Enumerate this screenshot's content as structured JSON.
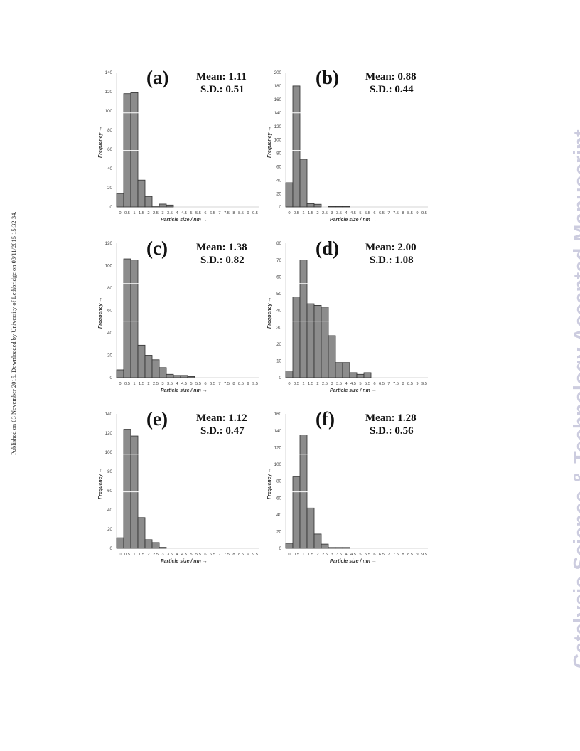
{
  "side_note": "Published on 03 November 2015. Downloaded by University of Lethbridge on 03/11/2015 15:32:34.",
  "watermark": "Catalysis Science & Technology Accepted Manuscript",
  "colors": {
    "bar_fill": "#8c8c8c",
    "bar_edge": "#2e2e2e",
    "axis": "#d6d6d6",
    "tick_text": "#444444"
  },
  "chart_data": [
    {
      "type": "bar",
      "panel_label": "(a)",
      "mean_text": "Mean: 1.11",
      "sd_text": "S.D.: 0.51",
      "ylabel": "Frequency →",
      "xlabel": "Particle size / nm →",
      "y_ticks": [
        "0",
        "20",
        "40",
        "60",
        "80",
        "100",
        "120",
        "140"
      ],
      "ylim": [
        0,
        140
      ],
      "categories": [
        "0",
        "0.5",
        "1",
        "1.5",
        "2",
        "2.5",
        "3",
        "3.5",
        "4",
        "4.5",
        "5",
        "5.5",
        "6",
        "6.5",
        "7",
        "7.5",
        "8",
        "8.5",
        "9",
        "9.5"
      ],
      "values": [
        14,
        118,
        119,
        28,
        11,
        1,
        3,
        2,
        0,
        0,
        0,
        0,
        0,
        0,
        0,
        0,
        0,
        0,
        0,
        0
      ]
    },
    {
      "type": "bar",
      "panel_label": "(b)",
      "mean_text": "Mean: 0.88",
      "sd_text": "S.D.: 0.44",
      "ylabel": "Frequency →",
      "xlabel": "Particle size / nm →",
      "y_ticks": [
        "0",
        "20",
        "40",
        "60",
        "80",
        "100",
        "120",
        "140",
        "160",
        "180",
        "200"
      ],
      "ylim": [
        0,
        200
      ],
      "categories": [
        "0",
        "0.5",
        "1",
        "1.5",
        "2",
        "2.5",
        "3",
        "3.5",
        "4",
        "4.5",
        "5",
        "5.5",
        "6",
        "6.5",
        "7",
        "7.5",
        "8",
        "8.5",
        "9",
        "9.5"
      ],
      "values": [
        36,
        180,
        71,
        5,
        4,
        0,
        1,
        1,
        1,
        0,
        0,
        0,
        0,
        0,
        0,
        0,
        0,
        0,
        0,
        0
      ]
    },
    {
      "type": "bar",
      "panel_label": "(c)",
      "mean_text": "Mean: 1.38",
      "sd_text": "S.D.: 0.82",
      "ylabel": "Frequency →",
      "xlabel": "Particle size / nm →",
      "y_ticks": [
        "0",
        "20",
        "40",
        "60",
        "80",
        "100",
        "120"
      ],
      "ylim": [
        0,
        120
      ],
      "categories": [
        "0",
        "0.5",
        "1",
        "1.5",
        "2",
        "2.5",
        "3",
        "3.5",
        "4",
        "4.5",
        "5",
        "5.5",
        "6",
        "6.5",
        "7",
        "7.5",
        "8",
        "8.5",
        "9",
        "9.5"
      ],
      "values": [
        7,
        106,
        105,
        29,
        20,
        16,
        9,
        3,
        2,
        2,
        1,
        0,
        0,
        0,
        0,
        0,
        0,
        0,
        0,
        0
      ]
    },
    {
      "type": "bar",
      "panel_label": "(d)",
      "mean_text": "Mean: 2.00",
      "sd_text": "S.D.: 1.08",
      "ylabel": "Frequency →",
      "xlabel": "Particle size / nm →",
      "y_ticks": [
        "0",
        "10",
        "20",
        "30",
        "40",
        "50",
        "60",
        "70",
        "80"
      ],
      "ylim": [
        0,
        80
      ],
      "categories": [
        "0",
        "0.5",
        "1",
        "1.5",
        "2",
        "2.5",
        "3",
        "3.5",
        "4",
        "4.5",
        "5",
        "5.5",
        "6",
        "6.5",
        "7",
        "7.5",
        "8",
        "8.5",
        "9",
        "9.5"
      ],
      "values": [
        4,
        48,
        70,
        44,
        43,
        42,
        25,
        9,
        9,
        3,
        2,
        3,
        0,
        0,
        0,
        0,
        0,
        0,
        0,
        0
      ]
    },
    {
      "type": "bar",
      "panel_label": "(e)",
      "mean_text": "Mean: 1.12",
      "sd_text": "S.D.: 0.47",
      "ylabel": "Frequency →",
      "xlabel": "Particle size / nm →",
      "y_ticks": [
        "0",
        "20",
        "40",
        "60",
        "80",
        "100",
        "120",
        "140"
      ],
      "ylim": [
        0,
        140
      ],
      "categories": [
        "0",
        "0.5",
        "1",
        "1.5",
        "2",
        "2.5",
        "3",
        "3.5",
        "4",
        "4.5",
        "5",
        "5.5",
        "6",
        "6.5",
        "7",
        "7.5",
        "8",
        "8.5",
        "9",
        "9.5"
      ],
      "values": [
        11,
        124,
        117,
        32,
        9,
        6,
        1,
        0,
        0,
        0,
        0,
        0,
        0,
        0,
        0,
        0,
        0,
        0,
        0,
        0
      ]
    },
    {
      "type": "bar",
      "panel_label": "(f)",
      "mean_text": "Mean: 1.28",
      "sd_text": "S.D.: 0.56",
      "ylabel": "Frequency →",
      "xlabel": "Particle size / nm →",
      "y_ticks": [
        "0",
        "20",
        "40",
        "60",
        "80",
        "100",
        "120",
        "140",
        "160"
      ],
      "ylim": [
        0,
        160
      ],
      "categories": [
        "0",
        "0.5",
        "1",
        "1.5",
        "2",
        "2.5",
        "3",
        "3.5",
        "4",
        "4.5",
        "5",
        "5.5",
        "6",
        "6.5",
        "7",
        "7.5",
        "8",
        "8.5",
        "9",
        "9.5"
      ],
      "values": [
        6,
        85,
        135,
        48,
        17,
        5,
        1,
        1,
        1,
        0,
        0,
        0,
        0,
        0,
        0,
        0,
        0,
        0,
        0,
        0
      ]
    }
  ]
}
